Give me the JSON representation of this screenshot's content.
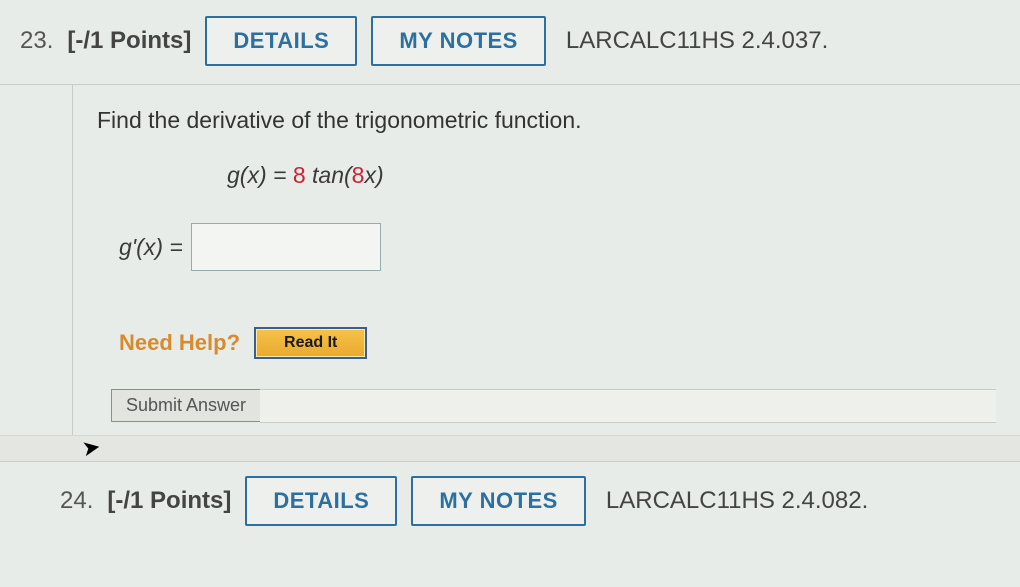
{
  "questions": [
    {
      "number": "23.",
      "points": "[-/1 Points]",
      "details_label": "DETAILS",
      "notes_label": "MY NOTES",
      "ref": "LARCALC11HS 2.4.037.",
      "prompt": "Find the derivative of the trigonometric function.",
      "equation": {
        "lhs": "g(x) = ",
        "coef": "8",
        "mid": " tan(",
        "inner_coef": "8",
        "tail": "x)"
      },
      "answer_lhs": "g'(x) =",
      "help_label": "Need Help?",
      "readit_label": "Read It",
      "submit_label": "Submit Answer"
    },
    {
      "number": "24.",
      "points": "[-/1 Points]",
      "details_label": "DETAILS",
      "notes_label": "MY NOTES",
      "ref": "LARCALC11HS 2.4.082."
    }
  ],
  "colors": {
    "button_border": "#2d6f9e",
    "help_orange": "#d68b2f",
    "readit_bg": "#f0b63c",
    "equation_highlight": "#c23"
  }
}
